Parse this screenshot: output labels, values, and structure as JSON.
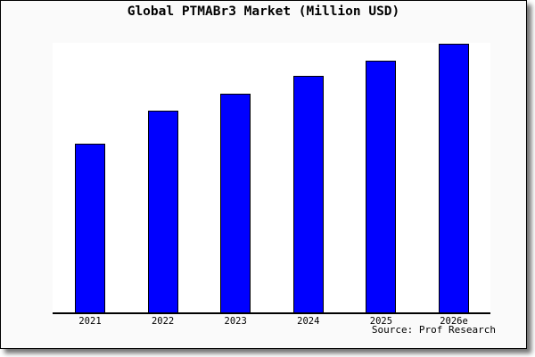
{
  "window": {
    "background": "#ffffff",
    "figure_background": "#fafafa",
    "border_color": "#000000"
  },
  "source": {
    "label": "Source: Prof Research"
  },
  "chart_data": {
    "type": "bar",
    "title": "Global PTMABr3 Market (Million USD)",
    "categories": [
      "2021",
      "2022",
      "2023",
      "2024",
      "2025",
      "2026e"
    ],
    "values": [
      62.9,
      75.2,
      81.5,
      87.9,
      93.8,
      100
    ],
    "value_scale_note": "y-axis shows no ticks or labels in source image; values are relative, normalized to 2026e = 100",
    "xlabel": "",
    "ylabel": "",
    "ylim": [
      0,
      100
    ],
    "grid": false,
    "legend": false,
    "bar_fill": "#0000ff",
    "bar_edge": "#000000",
    "plot_background": "#ffffff"
  }
}
